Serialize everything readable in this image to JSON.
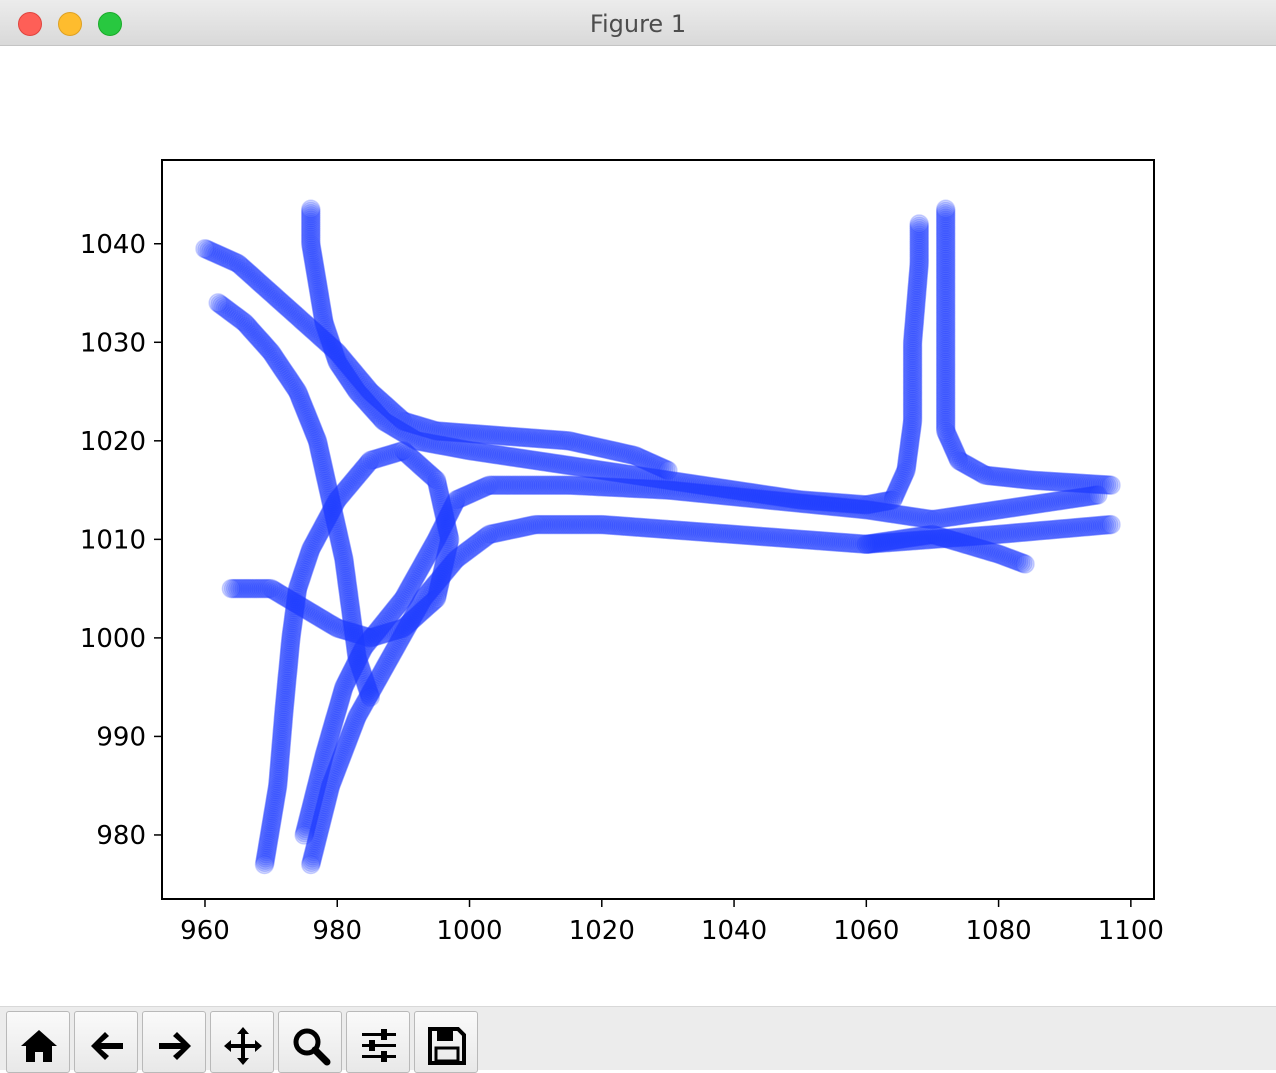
{
  "window": {
    "title": "Figure 1"
  },
  "toolbar": {
    "buttons": [
      {
        "name": "home-button",
        "icon": "home-icon"
      },
      {
        "name": "back-button",
        "icon": "arrow-left-icon"
      },
      {
        "name": "forward-button",
        "icon": "arrow-right-icon"
      },
      {
        "name": "pan-button",
        "icon": "move-icon"
      },
      {
        "name": "zoom-button",
        "icon": "zoom-icon"
      },
      {
        "name": "configure-subplots-button",
        "icon": "sliders-icon"
      },
      {
        "name": "save-button",
        "icon": "save-icon"
      }
    ]
  },
  "chart_data": {
    "type": "scatter",
    "title": "",
    "xlabel": "",
    "ylabel": "",
    "xlim": [
      953.5,
      1103.5
    ],
    "ylim": [
      973.5,
      1048.5
    ],
    "xticks": [
      960,
      980,
      1000,
      1020,
      1040,
      1060,
      1080,
      1100
    ],
    "yticks": [
      980,
      990,
      1000,
      1010,
      1020,
      1030,
      1040
    ],
    "xtick_labels": [
      "960",
      "980",
      "1000",
      "1020",
      "1040",
      "1060",
      "1080",
      "1100"
    ],
    "ytick_labels": [
      "980",
      "990",
      "1000",
      "1010",
      "1020",
      "1030",
      "1040"
    ],
    "grid": false,
    "marker_color": "#1f3cff",
    "series": [
      {
        "points": [
          [
            976,
            1043.5
          ],
          [
            976,
            1040
          ],
          [
            977,
            1036
          ],
          [
            978,
            1032
          ],
          [
            980,
            1028
          ],
          [
            983,
            1025
          ],
          [
            987,
            1022
          ],
          [
            992,
            1020
          ],
          [
            1000,
            1019
          ],
          [
            1010,
            1018
          ],
          [
            1020,
            1017
          ],
          [
            1030,
            1016
          ],
          [
            1040,
            1015
          ],
          [
            1050,
            1014
          ],
          [
            1060,
            1013.5
          ],
          [
            1064,
            1014
          ],
          [
            1066,
            1017
          ],
          [
            1067,
            1022
          ],
          [
            1067,
            1030
          ],
          [
            1068,
            1038
          ],
          [
            1068,
            1042
          ]
        ]
      },
      {
        "points": [
          [
            960,
            1039.5
          ],
          [
            965,
            1038
          ],
          [
            970,
            1035
          ],
          [
            975,
            1032
          ],
          [
            980,
            1029
          ],
          [
            985,
            1025
          ],
          [
            990,
            1022
          ],
          [
            995,
            1021
          ],
          [
            1005,
            1020.5
          ],
          [
            1015,
            1020
          ],
          [
            1025,
            1018.5
          ],
          [
            1030,
            1017
          ]
        ]
      },
      {
        "points": [
          [
            969,
            977
          ],
          [
            971,
            985
          ],
          [
            972,
            993
          ],
          [
            973,
            1000
          ],
          [
            974,
            1005
          ],
          [
            976,
            1009
          ],
          [
            980,
            1014
          ],
          [
            985,
            1018
          ],
          [
            990,
            1019
          ],
          [
            995,
            1016
          ],
          [
            997,
            1010
          ],
          [
            995,
            1004
          ],
          [
            990,
            1001
          ],
          [
            985,
            1000
          ],
          [
            980,
            1001
          ],
          [
            975,
            1003
          ],
          [
            970,
            1005
          ],
          [
            964,
            1005
          ]
        ]
      },
      {
        "points": [
          [
            976,
            977
          ],
          [
            979,
            985
          ],
          [
            983,
            992
          ],
          [
            988,
            998
          ],
          [
            993,
            1004
          ],
          [
            998,
            1008
          ],
          [
            1003,
            1010.5
          ],
          [
            1010,
            1011.5
          ],
          [
            1020,
            1011.5
          ],
          [
            1030,
            1011
          ],
          [
            1040,
            1010.5
          ],
          [
            1050,
            1010
          ],
          [
            1060,
            1009.5
          ],
          [
            1070,
            1010
          ],
          [
            1080,
            1010.5
          ],
          [
            1097,
            1011.5
          ]
        ]
      },
      {
        "points": [
          [
            1072,
            1043.5
          ],
          [
            1072,
            1036
          ],
          [
            1072,
            1028
          ],
          [
            1072,
            1021
          ],
          [
            1074,
            1018
          ],
          [
            1078,
            1016.5
          ],
          [
            1085,
            1016
          ],
          [
            1097,
            1015.5
          ]
        ]
      },
      {
        "points": [
          [
            1060,
            1009.5
          ],
          [
            1065,
            1010
          ],
          [
            1070,
            1010.5
          ],
          [
            1075,
            1009.5
          ],
          [
            1080,
            1008.5
          ],
          [
            1084,
            1007.5
          ]
        ]
      },
      {
        "points": [
          [
            962,
            1034
          ],
          [
            966,
            1032
          ],
          [
            970,
            1029
          ],
          [
            974,
            1025
          ],
          [
            977,
            1020
          ],
          [
            979,
            1014
          ],
          [
            981,
            1008
          ],
          [
            982,
            1003
          ],
          [
            983,
            998
          ],
          [
            985,
            994
          ]
        ]
      },
      {
        "points": [
          [
            975,
            980
          ],
          [
            978,
            988
          ],
          [
            981,
            995
          ],
          [
            984,
            999
          ],
          [
            990,
            1004
          ],
          [
            995,
            1010
          ],
          [
            998,
            1014
          ],
          [
            1003,
            1015.5
          ],
          [
            1015,
            1015.5
          ],
          [
            1030,
            1015
          ],
          [
            1045,
            1014
          ],
          [
            1060,
            1013
          ],
          [
            1070,
            1012
          ],
          [
            1080,
            1013
          ],
          [
            1090,
            1014
          ],
          [
            1095,
            1014.5
          ]
        ]
      }
    ]
  }
}
